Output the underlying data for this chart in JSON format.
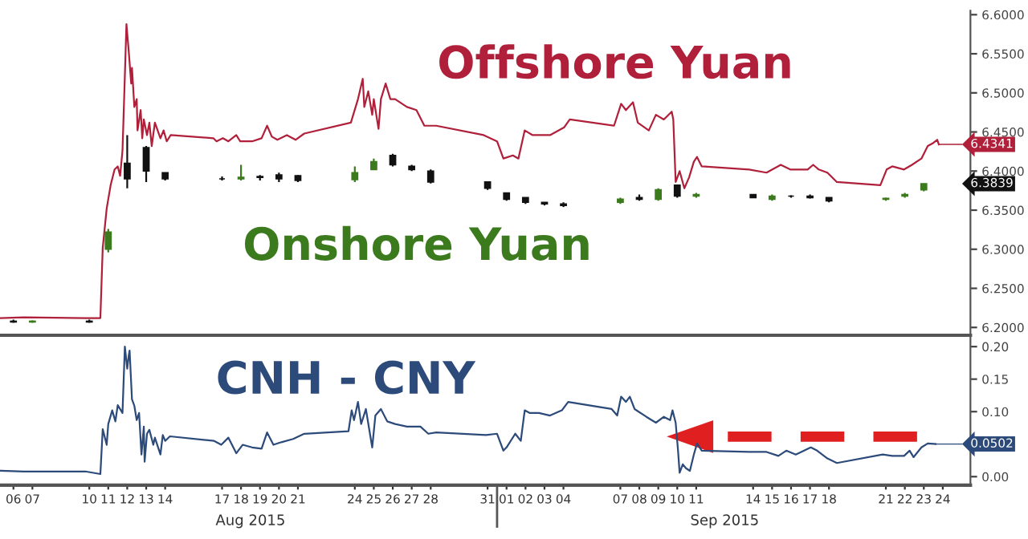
{
  "chart_data": [
    {
      "type": "line",
      "tick_labels": "y",
      "grid": false,
      "xlim": [
        "2015-08-05T19:00",
        "2015-09-25T23:00"
      ],
      "ylim": [
        6.19,
        6.605
      ],
      "yticks": [
        {
          "value": 6.2,
          "label": "6.2000"
        },
        {
          "value": 6.25,
          "label": "6.2500"
        },
        {
          "value": 6.3,
          "label": "6.3000"
        },
        {
          "value": 6.35,
          "label": "6.3500"
        },
        {
          "value": 6.4,
          "label": "6.4000"
        },
        {
          "value": 6.45,
          "label": "6.4500"
        },
        {
          "value": 6.5,
          "label": "6.5000"
        },
        {
          "value": 6.55,
          "label": "6.5500"
        },
        {
          "value": 6.6,
          "label": "6.6000"
        }
      ],
      "annotations": [
        {
          "text": "6.4341",
          "x": "2015-09-24T07:00",
          "y": 6.4341
        },
        "6.3839"
      ],
      "series": [
        {
          "name": "Offshore Yuan",
          "color": "#b0203a",
          "x": [
            "2015-08-05T20:00",
            "2015-08-07T01:00",
            "2015-08-10T07:00",
            "2015-08-11T02:00",
            "2015-08-11T05:00",
            "2015-08-11T10:00",
            "2015-08-11T15:00",
            "2015-08-11T20:00",
            "2015-08-12T00:00",
            "2015-08-12T03:00",
            "2015-08-12T06:00",
            "2015-08-12T09:00",
            "2015-08-12T11:00",
            "2015-08-12T14:00",
            "2015-08-12T17:00",
            "2015-08-12T18:00",
            "2015-08-12T21:00",
            "2015-08-13T00:00",
            "2015-08-13T01:00",
            "2015-08-13T05:00",
            "2015-08-13T07:00",
            "2015-08-13T09:00",
            "2015-08-13T13:00",
            "2015-08-13T16:00",
            "2015-08-13T19:00",
            "2015-08-13T23:00",
            "2015-08-14T06:00",
            "2015-08-14T10:00",
            "2015-08-14T14:00",
            "2015-08-14T19:00",
            "2015-08-17T01:00",
            "2015-08-17T05:00",
            "2015-08-17T13:00",
            "2015-08-17T20:00",
            "2015-08-18T06:00",
            "2015-08-18T11:00",
            "2015-08-19T02:00",
            "2015-08-19T14:00",
            "2015-08-19T21:00",
            "2015-08-20T03:00",
            "2015-08-20T10:00",
            "2015-08-20T22:00",
            "2015-08-21T09:00",
            "2015-08-21T20:00",
            "2015-08-24T07:00",
            "2015-08-24T16:00",
            "2015-08-24T22:00",
            "2015-08-25T00:00",
            "2015-08-25T05:00",
            "2015-08-25T10:00",
            "2015-08-25T12:00",
            "2015-08-25T18:00",
            "2015-08-25T21:00",
            "2015-08-26T03:00",
            "2015-08-26T09:00",
            "2015-08-26T15:00",
            "2015-08-27T06:00",
            "2015-08-27T18:00",
            "2015-08-28T04:00",
            "2015-08-28T19:00",
            "2015-08-31T07:00",
            "2015-09-01T00:00",
            "2015-09-01T08:00",
            "2015-09-01T20:00",
            "2015-09-02T03:00",
            "2015-09-02T11:00",
            "2015-09-02T21:00",
            "2015-09-03T19:00",
            "2015-09-04T13:00",
            "2015-09-04T20:00",
            "2015-09-07T04:00",
            "2015-09-07T13:00",
            "2015-09-07T19:00",
            "2015-09-08T04:00",
            "2015-09-08T10:00",
            "2015-09-09T00:00",
            "2015-09-09T09:00",
            "2015-09-09T19:00",
            "2015-09-10T05:00",
            "2015-09-10T07:00",
            "2015-09-10T10:00",
            "2015-09-10T15:00",
            "2015-09-10T21:00",
            "2015-09-11T03:00",
            "2015-09-11T09:00",
            "2015-09-11T13:00",
            "2015-09-11T19:00",
            "2015-09-14T07:00",
            "2015-09-15T05:00",
            "2015-09-15T23:00",
            "2015-09-16T11:00",
            "2015-09-17T09:00",
            "2015-09-17T16:00",
            "2015-09-17T23:00",
            "2015-09-18T10:00",
            "2015-09-18T22:00",
            "2015-09-21T05:00",
            "2015-09-21T13:00",
            "2015-09-21T20:00",
            "2015-09-22T11:00",
            "2015-09-22T21:00",
            "2015-09-23T09:00",
            "2015-09-23T17:00",
            "2015-09-24T00:00",
            "2015-09-24T05:00",
            "2015-09-24T07:00"
          ],
          "values": [
            6.212,
            6.213,
            6.212,
            6.212,
            6.302,
            6.352,
            6.382,
            6.402,
            6.406,
            6.394,
            6.426,
            6.522,
            6.588,
            6.552,
            6.512,
            6.532,
            6.482,
            6.492,
            6.452,
            6.478,
            6.442,
            6.466,
            6.446,
            6.462,
            6.432,
            6.462,
            6.442,
            6.452,
            6.438,
            6.446,
            6.442,
            6.438,
            6.442,
            6.438,
            6.446,
            6.438,
            6.438,
            6.442,
            6.458,
            6.444,
            6.44,
            6.446,
            6.44,
            6.448,
            6.462,
            6.492,
            6.518,
            6.482,
            6.502,
            6.472,
            6.492,
            6.454,
            6.492,
            6.512,
            6.492,
            6.492,
            6.482,
            6.478,
            6.458,
            6.458,
            6.446,
            6.438,
            6.416,
            6.42,
            6.416,
            6.452,
            6.446,
            6.446,
            6.456,
            6.466,
            6.458,
            6.486,
            6.478,
            6.488,
            6.462,
            6.452,
            6.472,
            6.466,
            6.476,
            6.466,
            6.386,
            6.4,
            6.378,
            6.392,
            6.412,
            6.418,
            6.406,
            6.402,
            6.398,
            6.408,
            6.402,
            6.402,
            6.408,
            6.402,
            6.398,
            6.386,
            6.382,
            6.402,
            6.406,
            6.402,
            6.408,
            6.416,
            6.432,
            6.436,
            6.44,
            6.4341
          ]
        },
        {
          "name": "Onshore Yuan",
          "type": "candlestick",
          "color": "#3c7a1e",
          "colors": [
            "#111111",
            "#3c7a1e",
            "#111111",
            "#3c7a1e",
            "#111111",
            "#111111",
            "#111111",
            "#111111",
            "#3c7a1e",
            "#111111",
            "#111111",
            "#111111",
            "#3c7a1e",
            "#3c7a1e",
            "#111111",
            "#111111",
            "#111111",
            "#111111",
            "#111111",
            "#111111",
            "#111111",
            "#111111",
            "#3c7a1e",
            "#111111",
            "#3c7a1e",
            "#111111",
            "#3c7a1e",
            "#111111",
            "#3c7a1e",
            "#111111",
            "#111111",
            "#111111",
            "#3c7a1e",
            "#3c7a1e",
            "#3c7a1e"
          ],
          "x": [
            "2015-08-06T12:00",
            "2015-08-07T12:00",
            "2015-08-10T12:00",
            "2015-08-11T12:00",
            "2015-08-12T12:00",
            "2015-08-13T12:00",
            "2015-08-14T12:00",
            "2015-08-17T12:00",
            "2015-08-18T12:00",
            "2015-08-19T12:00",
            "2015-08-20T12:00",
            "2015-08-21T12:00",
            "2015-08-24T12:00",
            "2015-08-25T12:00",
            "2015-08-26T12:00",
            "2015-08-27T12:00",
            "2015-08-28T12:00",
            "2015-08-31T12:00",
            "2015-09-01T12:00",
            "2015-09-02T12:00",
            "2015-09-03T12:00",
            "2015-09-04T12:00",
            "2015-09-07T12:00",
            "2015-09-08T12:00",
            "2015-09-09T12:00",
            "2015-09-10T12:00",
            "2015-09-11T12:00",
            "2015-09-14T12:00",
            "2015-09-15T12:00",
            "2015-09-16T12:00",
            "2015-09-17T12:00",
            "2015-09-18T12:00",
            "2015-09-21T12:00",
            "2015-09-22T12:00",
            "2015-09-23T12:00"
          ],
          "ohlc": [
            [
              6.208,
              6.21,
              6.206,
              6.207
            ],
            [
              6.207,
              6.209,
              6.206,
              6.208
            ],
            [
              6.208,
              6.21,
              6.206,
              6.207
            ],
            [
              6.3,
              6.326,
              6.296,
              6.322
            ],
            [
              6.41,
              6.446,
              6.378,
              6.39
            ],
            [
              6.43,
              6.432,
              6.386,
              6.4
            ],
            [
              6.398,
              6.398,
              6.388,
              6.39
            ],
            [
              6.39,
              6.393,
              6.388,
              6.39
            ],
            [
              6.39,
              6.408,
              6.388,
              6.392
            ],
            [
              6.393,
              6.395,
              6.388,
              6.392
            ],
            [
              6.395,
              6.398,
              6.386,
              6.39
            ],
            [
              6.394,
              6.395,
              6.386,
              6.388
            ],
            [
              6.389,
              6.406,
              6.386,
              6.398
            ],
            [
              6.402,
              6.416,
              6.402,
              6.412
            ],
            [
              6.42,
              6.422,
              6.406,
              6.408
            ],
            [
              6.406,
              6.408,
              6.4,
              6.402
            ],
            [
              6.4,
              6.402,
              6.384,
              6.386
            ],
            [
              6.386,
              6.386,
              6.376,
              6.378
            ],
            [
              6.372,
              6.372,
              6.362,
              6.364
            ],
            [
              6.366,
              6.366,
              6.358,
              6.36
            ],
            [
              6.36,
              6.36,
              6.356,
              6.358
            ],
            [
              6.358,
              6.36,
              6.354,
              6.356
            ],
            [
              6.36,
              6.366,
              6.358,
              6.364
            ],
            [
              6.366,
              6.37,
              6.362,
              6.364
            ],
            [
              6.364,
              6.378,
              6.362,
              6.376
            ],
            [
              6.382,
              6.382,
              6.366,
              6.368
            ],
            [
              6.368,
              6.372,
              6.366,
              6.37
            ],
            [
              6.37,
              6.37,
              6.366,
              6.366
            ],
            [
              6.364,
              6.37,
              6.362,
              6.368
            ],
            [
              6.368,
              6.369,
              6.366,
              6.368
            ],
            [
              6.368,
              6.37,
              6.365,
              6.366
            ],
            [
              6.366,
              6.366,
              6.36,
              6.362
            ],
            [
              6.364,
              6.366,
              6.362,
              6.365
            ],
            [
              6.368,
              6.372,
              6.366,
              6.37
            ],
            [
              6.376,
              6.384,
              6.374,
              6.3839
            ]
          ]
        }
      ]
    },
    {
      "type": "line",
      "grid": false,
      "xlim": [
        "2015-08-05T19:00",
        "2015-09-25T23:00"
      ],
      "ylim": [
        -0.013,
        0.215
      ],
      "xticks": [
        {
          "value": "2015-08-06T12:00",
          "label": "06"
        },
        {
          "value": "2015-08-07T12:00",
          "label": "07"
        },
        {
          "value": "2015-08-10T12:00",
          "label": "10"
        },
        {
          "value": "2015-08-11T12:00",
          "label": "11"
        },
        {
          "value": "2015-08-12T12:00",
          "label": "12"
        },
        {
          "value": "2015-08-13T12:00",
          "label": "13"
        },
        {
          "value": "2015-08-14T12:00",
          "label": "14"
        },
        {
          "value": "2015-08-17T12:00",
          "label": "17"
        },
        {
          "value": "2015-08-18T12:00",
          "label": "18"
        },
        {
          "value": "2015-08-19T12:00",
          "label": "19"
        },
        {
          "value": "2015-08-20T12:00",
          "label": "20"
        },
        {
          "value": "2015-08-21T12:00",
          "label": "21"
        },
        {
          "value": "2015-08-24T12:00",
          "label": "24"
        },
        {
          "value": "2015-08-25T12:00",
          "label": "25"
        },
        {
          "value": "2015-08-26T12:00",
          "label": "26"
        },
        {
          "value": "2015-08-27T12:00",
          "label": "27"
        },
        {
          "value": "2015-08-28T12:00",
          "label": "28"
        },
        {
          "value": "2015-08-31T12:00",
          "label": "31"
        },
        {
          "value": "2015-09-01T12:00",
          "label": "01"
        },
        {
          "value": "2015-09-02T12:00",
          "label": "02"
        },
        {
          "value": "2015-09-03T12:00",
          "label": "03"
        },
        {
          "value": "2015-09-04T12:00",
          "label": "04"
        },
        {
          "value": "2015-09-07T12:00",
          "label": "07"
        },
        {
          "value": "2015-09-08T12:00",
          "label": "08"
        },
        {
          "value": "2015-09-09T12:00",
          "label": "09"
        },
        {
          "value": "2015-09-10T12:00",
          "label": "10"
        },
        {
          "value": "2015-09-11T12:00",
          "label": "11"
        },
        {
          "value": "2015-09-14T12:00",
          "label": "14"
        },
        {
          "value": "2015-09-15T12:00",
          "label": "15"
        },
        {
          "value": "2015-09-16T12:00",
          "label": "16"
        },
        {
          "value": "2015-09-17T12:00",
          "label": "17"
        },
        {
          "value": "2015-09-18T12:00",
          "label": "18"
        },
        {
          "value": "2015-09-21T12:00",
          "label": "21"
        },
        {
          "value": "2015-09-22T12:00",
          "label": "22"
        },
        {
          "value": "2015-09-23T12:00",
          "label": "23"
        },
        {
          "value": "2015-09-24T12:00",
          "label": "24"
        }
      ],
      "yticks": [
        {
          "value": 0,
          "label": "0.00"
        },
        {
          "value": 0.05,
          "label": null
        },
        {
          "value": 0.1,
          "label": "0.10"
        },
        {
          "value": 0.15,
          "label": "0.15"
        },
        {
          "value": 0.2,
          "label": "0.20"
        }
      ],
      "annotations": [
        {
          "text": "0.0502",
          "x": "2015-09-24T03:00",
          "y": 0.0502
        },
        "Aug 2015",
        "Sep 2015"
      ],
      "series": [
        {
          "name": "CNH - CNY",
          "color": "#2c4a7a",
          "x": [
            "2015-08-05T20:00",
            "2015-08-07T01:00",
            "2015-08-10T07:00",
            "2015-08-11T02:00",
            "2015-08-11T05:00",
            "2015-08-11T10:00",
            "2015-08-11T12:00",
            "2015-08-11T17:00",
            "2015-08-11T21:00",
            "2015-08-12T00:00",
            "2015-08-12T06:00",
            "2015-08-12T09:00",
            "2015-08-12T12:00",
            "2015-08-12T14:00",
            "2015-08-12T15:00",
            "2015-08-12T18:00",
            "2015-08-12T21:00",
            "2015-08-13T00:00",
            "2015-08-13T03:00",
            "2015-08-13T06:00",
            "2015-08-13T09:00",
            "2015-08-13T10:00",
            "2015-08-13T13:00",
            "2015-08-13T16:00",
            "2015-08-13T21:00",
            "2015-08-13T23:00",
            "2015-08-14T06:00",
            "2015-08-14T09:00",
            "2015-08-14T12:00",
            "2015-08-14T18:00",
            "2015-08-17T02:00",
            "2015-08-17T11:00",
            "2015-08-17T20:00",
            "2015-08-18T06:00",
            "2015-08-18T14:00",
            "2015-08-19T02:00",
            "2015-08-19T14:00",
            "2015-08-19T21:00",
            "2015-08-20T05:00",
            "2015-08-20T15:00",
            "2015-08-21T06:00",
            "2015-08-21T20:00",
            "2015-08-24T04:00",
            "2015-08-24T08:00",
            "2015-08-24T11:00",
            "2015-08-24T16:00",
            "2015-08-24T20:00",
            "2015-08-25T02:00",
            "2015-08-25T10:00",
            "2015-08-25T14:00",
            "2015-08-25T21:00",
            "2015-08-26T05:00",
            "2015-08-26T15:00",
            "2015-08-27T06:00",
            "2015-08-27T23:00",
            "2015-08-28T09:00",
            "2015-08-28T19:00",
            "2015-08-31T10:00",
            "2015-09-01T00:00",
            "2015-09-01T08:00",
            "2015-09-01T12:00",
            "2015-09-01T23:00",
            "2015-09-02T06:00",
            "2015-09-02T11:00",
            "2015-09-02T17:00",
            "2015-09-03T05:00",
            "2015-09-03T19:00",
            "2015-09-04T10:00",
            "2015-09-04T18:00",
            "2015-09-07T01:00",
            "2015-09-07T08:00",
            "2015-09-07T13:00",
            "2015-09-07T19:00",
            "2015-09-08T00:00",
            "2015-09-08T06:00",
            "2015-09-08T21:00",
            "2015-09-09T09:00",
            "2015-09-09T19:00",
            "2015-09-10T03:00",
            "2015-09-10T06:00",
            "2015-09-10T10:00",
            "2015-09-10T13:00",
            "2015-09-10T15:00",
            "2015-09-10T19:00",
            "2015-09-10T23:00",
            "2015-09-11T04:00",
            "2015-09-11T09:00",
            "2015-09-11T13:00",
            "2015-09-11T19:00",
            "2015-09-14T07:00",
            "2015-09-15T05:00",
            "2015-09-15T20:00",
            "2015-09-16T06:00",
            "2015-09-16T18:00",
            "2015-09-17T13:00",
            "2015-09-17T21:00",
            "2015-09-18T10:00",
            "2015-09-18T22:00",
            "2015-09-21T08:00",
            "2015-09-21T20:00",
            "2015-09-22T11:00",
            "2015-09-22T18:00",
            "2015-09-22T23:00",
            "2015-09-23T09:00",
            "2015-09-23T17:00",
            "2015-09-24T03:00"
          ],
          "values": [
            0.009,
            0.008,
            0.008,
            0.004,
            0.073,
            0.049,
            0.081,
            0.102,
            0.085,
            0.11,
            0.098,
            0.2,
            0.166,
            0.187,
            0.194,
            0.119,
            0.109,
            0.087,
            0.098,
            0.034,
            0.077,
            0.023,
            0.066,
            0.072,
            0.049,
            0.06,
            0.034,
            0.064,
            0.055,
            0.062,
            0.055,
            0.049,
            0.06,
            0.036,
            0.049,
            0.045,
            0.043,
            0.068,
            0.049,
            0.053,
            0.058,
            0.066,
            0.07,
            0.102,
            0.087,
            0.115,
            0.081,
            0.104,
            0.045,
            0.094,
            0.104,
            0.085,
            0.081,
            0.077,
            0.077,
            0.066,
            0.068,
            0.064,
            0.066,
            0.04,
            0.045,
            0.066,
            0.055,
            0.102,
            0.098,
            0.098,
            0.094,
            0.102,
            0.115,
            0.104,
            0.094,
            0.123,
            0.115,
            0.123,
            0.104,
            0.092,
            0.083,
            0.092,
            0.087,
            0.102,
            0.083,
            0.04,
            0.006,
            0.019,
            0.013,
            0.009,
            0.034,
            0.051,
            0.04,
            0.038,
            0.038,
            0.032,
            0.04,
            0.034,
            0.045,
            0.04,
            0.028,
            0.021,
            0.034,
            0.032,
            0.032,
            0.04,
            0.03,
            0.045,
            0.051,
            0.0502
          ]
        }
      ]
    }
  ]
}
